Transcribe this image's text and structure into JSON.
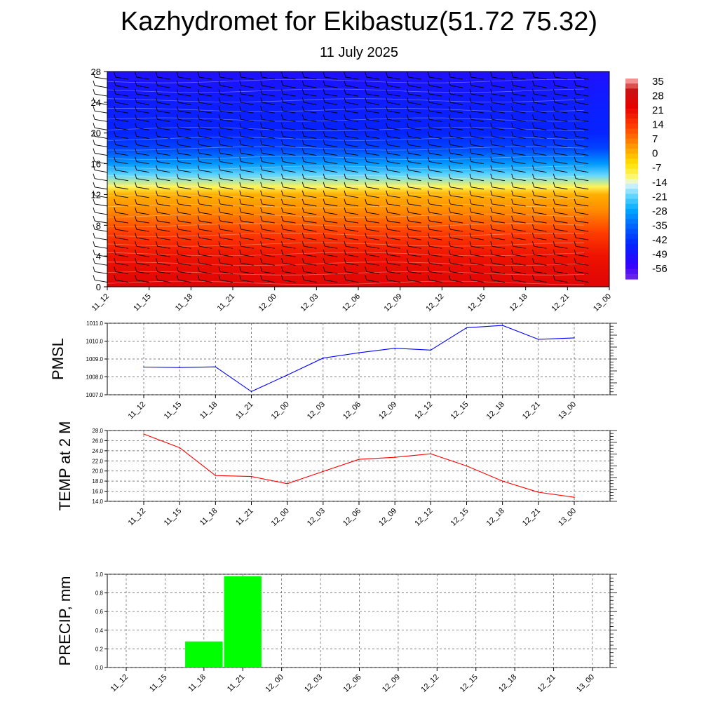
{
  "title": "Kazhydromet for Ekibastuz(51.72 75.32)",
  "subtitle": "11 July 2025",
  "time_labels": [
    "11_12",
    "11_15",
    "11_18",
    "11_21",
    "12_00",
    "12_03",
    "12_06",
    "12_09",
    "12_12",
    "12_15",
    "12_18",
    "12_21",
    "13_00"
  ],
  "chart_data": [
    {
      "type": "heatmap",
      "x": [
        "11_12",
        "11_15",
        "11_18",
        "11_21",
        "12_00",
        "12_03",
        "12_06",
        "12_09",
        "12_12",
        "12_15",
        "12_18",
        "12_21",
        "13_00"
      ],
      "y_ticks": [
        0,
        4,
        8,
        12,
        16,
        20,
        24,
        28
      ],
      "ylim": [
        0,
        28
      ],
      "colorbar": {
        "labels": [
          "35",
          "28",
          "21",
          "14",
          "7",
          "0",
          "-7",
          "-14",
          "-21",
          "-28",
          "-35",
          "-42",
          "-49",
          "-56"
        ],
        "range": [
          -63,
          38
        ]
      },
      "overlay": "wind barbs",
      "profile_levels": [
        {
          "y": 0,
          "value": 26
        },
        {
          "y": 4,
          "value": 21
        },
        {
          "y": 7,
          "value": 14
        },
        {
          "y": 10,
          "value": 5
        },
        {
          "y": 12,
          "value": 1
        },
        {
          "y": 13,
          "value": -10
        },
        {
          "y": 14.5,
          "value": -21
        },
        {
          "y": 16,
          "value": -30
        },
        {
          "y": 18,
          "value": -41
        },
        {
          "y": 20,
          "value": -46
        },
        {
          "y": 24,
          "value": -48
        },
        {
          "y": 28,
          "value": -52
        }
      ]
    },
    {
      "type": "line",
      "ylabel": "PMSL",
      "x": [
        "11_12",
        "11_15",
        "11_18",
        "11_21",
        "12_00",
        "12_03",
        "12_06",
        "12_09",
        "12_12",
        "12_15",
        "12_18",
        "12_21",
        "13_00"
      ],
      "values": [
        1008.55,
        1008.52,
        1008.56,
        1007.18,
        1008.1,
        1009.05,
        1009.35,
        1009.6,
        1009.5,
        1010.75,
        1010.88,
        1010.1,
        1010.18
      ],
      "y_ticks": [
        "1007.0",
        "1008.0",
        "1009.0",
        "1010.0",
        "1011.0"
      ],
      "ylim": [
        1007.0,
        1011.0
      ],
      "color": "#0000ff",
      "grid": true
    },
    {
      "type": "line",
      "ylabel": "TEMP at 2 M",
      "x": [
        "11_12",
        "11_15",
        "11_18",
        "11_21",
        "12_00",
        "12_03",
        "12_06",
        "12_09",
        "12_12",
        "12_15",
        "12_18",
        "12_21",
        "13_00"
      ],
      "values": [
        27.3,
        24.6,
        19.1,
        18.9,
        17.5,
        19.9,
        22.3,
        22.7,
        23.4,
        21.0,
        18.0,
        15.8,
        14.8
      ],
      "y_ticks": [
        "14.0",
        "16.0",
        "18.0",
        "20.0",
        "22.0",
        "24.0",
        "26.0",
        "28.0"
      ],
      "ylim": [
        14.0,
        28.0
      ],
      "color": "#ff0000",
      "grid": true
    },
    {
      "type": "bar",
      "ylabel": "PRECIP, mm",
      "categories": [
        "11_12",
        "11_15",
        "11_18",
        "11_21",
        "12_00",
        "12_03",
        "12_06",
        "12_09",
        "12_12",
        "12_15",
        "12_18",
        "12_21",
        "13_00"
      ],
      "values": [
        0,
        0,
        0.28,
        0.98,
        0,
        0,
        0,
        0,
        0,
        0,
        0,
        0,
        0
      ],
      "y_ticks": [
        "0.0",
        "0.2",
        "0.4",
        "0.6",
        "0.8",
        "1.0"
      ],
      "ylim": [
        0,
        1.0
      ],
      "color": "#00ff00",
      "grid": true
    }
  ]
}
